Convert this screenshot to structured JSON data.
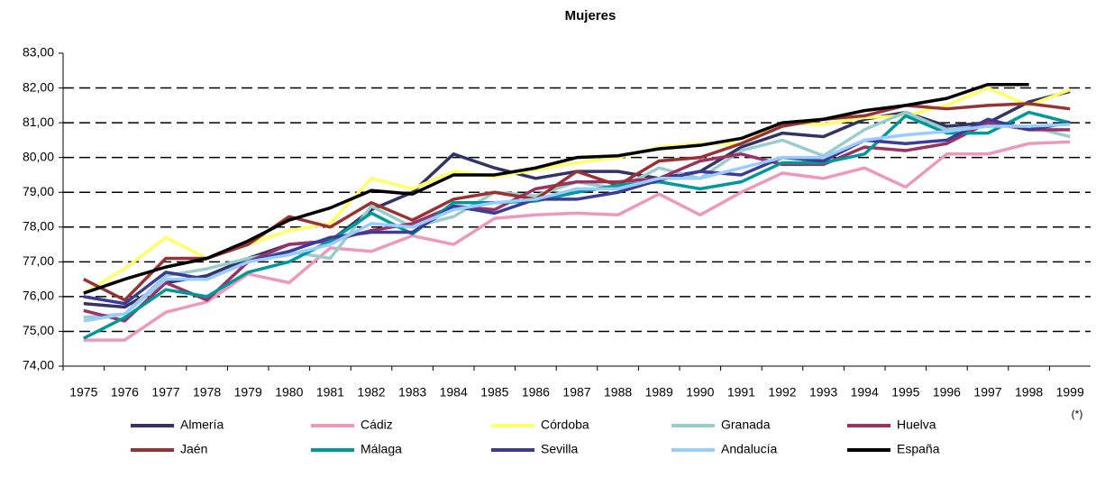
{
  "chart_data": {
    "type": "line",
    "title": "Mujeres",
    "annotation": "(*)",
    "categories": [
      "1975",
      "1976",
      "1977",
      "1978",
      "1979",
      "1980",
      "1981",
      "1982",
      "1983",
      "1984",
      "1985",
      "1986",
      "1987",
      "1988",
      "1989",
      "1990",
      "1991",
      "1992",
      "1993",
      "1994",
      "1995",
      "1996",
      "1997",
      "1998",
      "1999"
    ],
    "ylim": [
      74,
      83
    ],
    "yticks": [
      {
        "value": 74,
        "label": "74,00"
      },
      {
        "value": 75,
        "label": "75,00"
      },
      {
        "value": 76,
        "label": "76,00"
      },
      {
        "value": 77,
        "label": "77,00"
      },
      {
        "value": 78,
        "label": "78,00"
      },
      {
        "value": 79,
        "label": "79,00"
      },
      {
        "value": 80,
        "label": "80,00"
      },
      {
        "value": 81,
        "label": "81,00"
      },
      {
        "value": 82,
        "label": "82,00"
      },
      {
        "value": 83,
        "label": "83,00"
      }
    ],
    "grid": true,
    "series": [
      {
        "name": "Almería",
        "color": "#333366",
        "values": [
          75.8,
          75.7,
          76.4,
          76.6,
          77.1,
          77.5,
          77.6,
          78.5,
          79.0,
          80.1,
          79.7,
          79.4,
          79.6,
          79.6,
          79.4,
          79.6,
          80.3,
          80.7,
          80.6,
          81.1,
          81.3,
          80.9,
          81.0,
          81.6,
          81.9
        ]
      },
      {
        "name": "Cádiz",
        "color": "#ee99bb",
        "values": [
          74.75,
          74.75,
          75.55,
          75.85,
          76.65,
          76.4,
          77.4,
          77.3,
          77.75,
          77.5,
          78.25,
          78.35,
          78.4,
          78.35,
          78.95,
          78.35,
          79.0,
          79.55,
          79.4,
          79.7,
          79.15,
          80.1,
          80.1,
          80.4,
          80.45
        ]
      },
      {
        "name": "Córdoba",
        "color": "#ffff66",
        "values": [
          76.1,
          76.8,
          77.7,
          77.1,
          77.5,
          77.9,
          78.1,
          79.4,
          79.1,
          79.6,
          79.45,
          79.65,
          79.85,
          80.0,
          80.3,
          80.4,
          80.4,
          81.0,
          80.95,
          81.15,
          81.2,
          81.5,
          82.0,
          81.5,
          81.95
        ]
      },
      {
        "name": "Granada",
        "color": "#99cccc",
        "values": [
          75.4,
          75.5,
          76.6,
          76.8,
          77.1,
          77.3,
          77.1,
          78.6,
          78.0,
          78.3,
          79.0,
          78.9,
          79.3,
          79.1,
          79.7,
          79.4,
          80.2,
          80.5,
          80.05,
          80.8,
          81.3,
          80.8,
          80.9,
          80.9,
          80.6
        ]
      },
      {
        "name": "Huelva",
        "color": "#993366",
        "values": [
          75.6,
          75.3,
          76.4,
          75.9,
          77.0,
          77.5,
          77.6,
          77.9,
          78.1,
          78.6,
          78.5,
          79.1,
          79.3,
          79.3,
          79.4,
          79.9,
          80.1,
          79.8,
          79.8,
          80.3,
          80.2,
          80.4,
          81.0,
          80.8,
          80.8
        ]
      },
      {
        "name": "Jaén",
        "color": "#993333",
        "values": [
          76.5,
          75.9,
          77.1,
          77.1,
          77.5,
          78.3,
          78.0,
          78.7,
          78.2,
          78.8,
          79.0,
          78.8,
          79.6,
          79.2,
          79.9,
          80.0,
          80.4,
          80.9,
          81.1,
          81.2,
          81.5,
          81.4,
          81.5,
          81.55,
          81.4
        ]
      },
      {
        "name": "Málaga",
        "color": "#009999",
        "values": [
          74.8,
          75.4,
          76.2,
          76.0,
          76.7,
          77.0,
          77.6,
          78.4,
          77.8,
          78.7,
          78.7,
          78.75,
          79.0,
          79.2,
          79.3,
          79.1,
          79.3,
          79.85,
          79.85,
          80.1,
          81.2,
          80.7,
          80.7,
          81.3,
          81.0
        ]
      },
      {
        "name": "Sevilla",
        "color": "#3b3b99",
        "values": [
          76.0,
          75.8,
          76.7,
          76.5,
          77.0,
          77.3,
          77.7,
          77.85,
          77.85,
          78.6,
          78.4,
          78.8,
          78.8,
          79.0,
          79.35,
          79.6,
          79.5,
          80.0,
          79.9,
          80.5,
          80.4,
          80.5,
          81.1,
          80.8,
          81.0
        ]
      },
      {
        "name": "Andalucía",
        "color": "#99ccff",
        "values": [
          75.3,
          75.5,
          76.5,
          76.5,
          77.0,
          77.2,
          77.5,
          78.1,
          78.0,
          78.5,
          78.7,
          78.8,
          79.1,
          79.1,
          79.4,
          79.4,
          79.7,
          80.0,
          80.0,
          80.5,
          80.65,
          80.75,
          80.9,
          80.9,
          80.95
        ]
      },
      {
        "name": "España",
        "color": "#000000",
        "values": [
          76.1,
          76.5,
          76.85,
          77.1,
          77.6,
          78.2,
          78.55,
          79.05,
          78.95,
          79.5,
          79.5,
          79.7,
          80.0,
          80.05,
          80.25,
          80.35,
          80.55,
          81.0,
          81.1,
          81.35,
          81.5,
          81.7,
          82.1,
          82.1,
          null
        ]
      }
    ]
  }
}
